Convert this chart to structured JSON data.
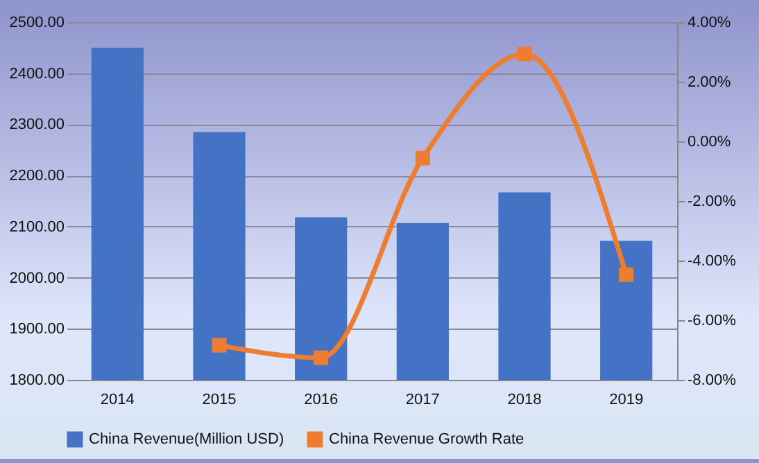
{
  "chart_data": {
    "type": "bar",
    "categories": [
      "2014",
      "2015",
      "2016",
      "2017",
      "2018",
      "2019"
    ],
    "series": [
      {
        "name": "China Revenue(Million USD)",
        "color": "#4472c4",
        "values": [
          2450,
          2285,
          2118,
          2107,
          2167,
          2072
        ]
      },
      {
        "name": "China Revenue Growth Rate",
        "type": "line",
        "axis": "y2",
        "color": "#ed7d31",
        "marker": "square",
        "values": [
          null,
          -6.84,
          -7.26,
          -0.56,
          2.93,
          -4.47
        ]
      }
    ],
    "ylim": [
      1800,
      2500
    ],
    "yticks": [
      {
        "value": 1800,
        "label": "1800.00"
      },
      {
        "value": 1900,
        "label": "1900.00"
      },
      {
        "value": 2000,
        "label": "2000.00"
      },
      {
        "value": 2100,
        "label": "2100.00"
      },
      {
        "value": 2200,
        "label": "2200.00"
      },
      {
        "value": 2300,
        "label": "2300.00"
      },
      {
        "value": 2400,
        "label": "2400.00"
      },
      {
        "value": 2500,
        "label": "2500.00"
      }
    ],
    "y2lim": [
      -8,
      4
    ],
    "y2ticks": [
      {
        "value": -8,
        "label": "-8.00%"
      },
      {
        "value": -6,
        "label": "-6.00%"
      },
      {
        "value": -4,
        "label": "-4.00%"
      },
      {
        "value": -2,
        "label": "-2.00%"
      },
      {
        "value": 0,
        "label": "0.00%"
      },
      {
        "value": 2,
        "label": "2.00%"
      },
      {
        "value": 4,
        "label": "4.00%"
      }
    ],
    "grid": "y",
    "legend": "bottom"
  }
}
